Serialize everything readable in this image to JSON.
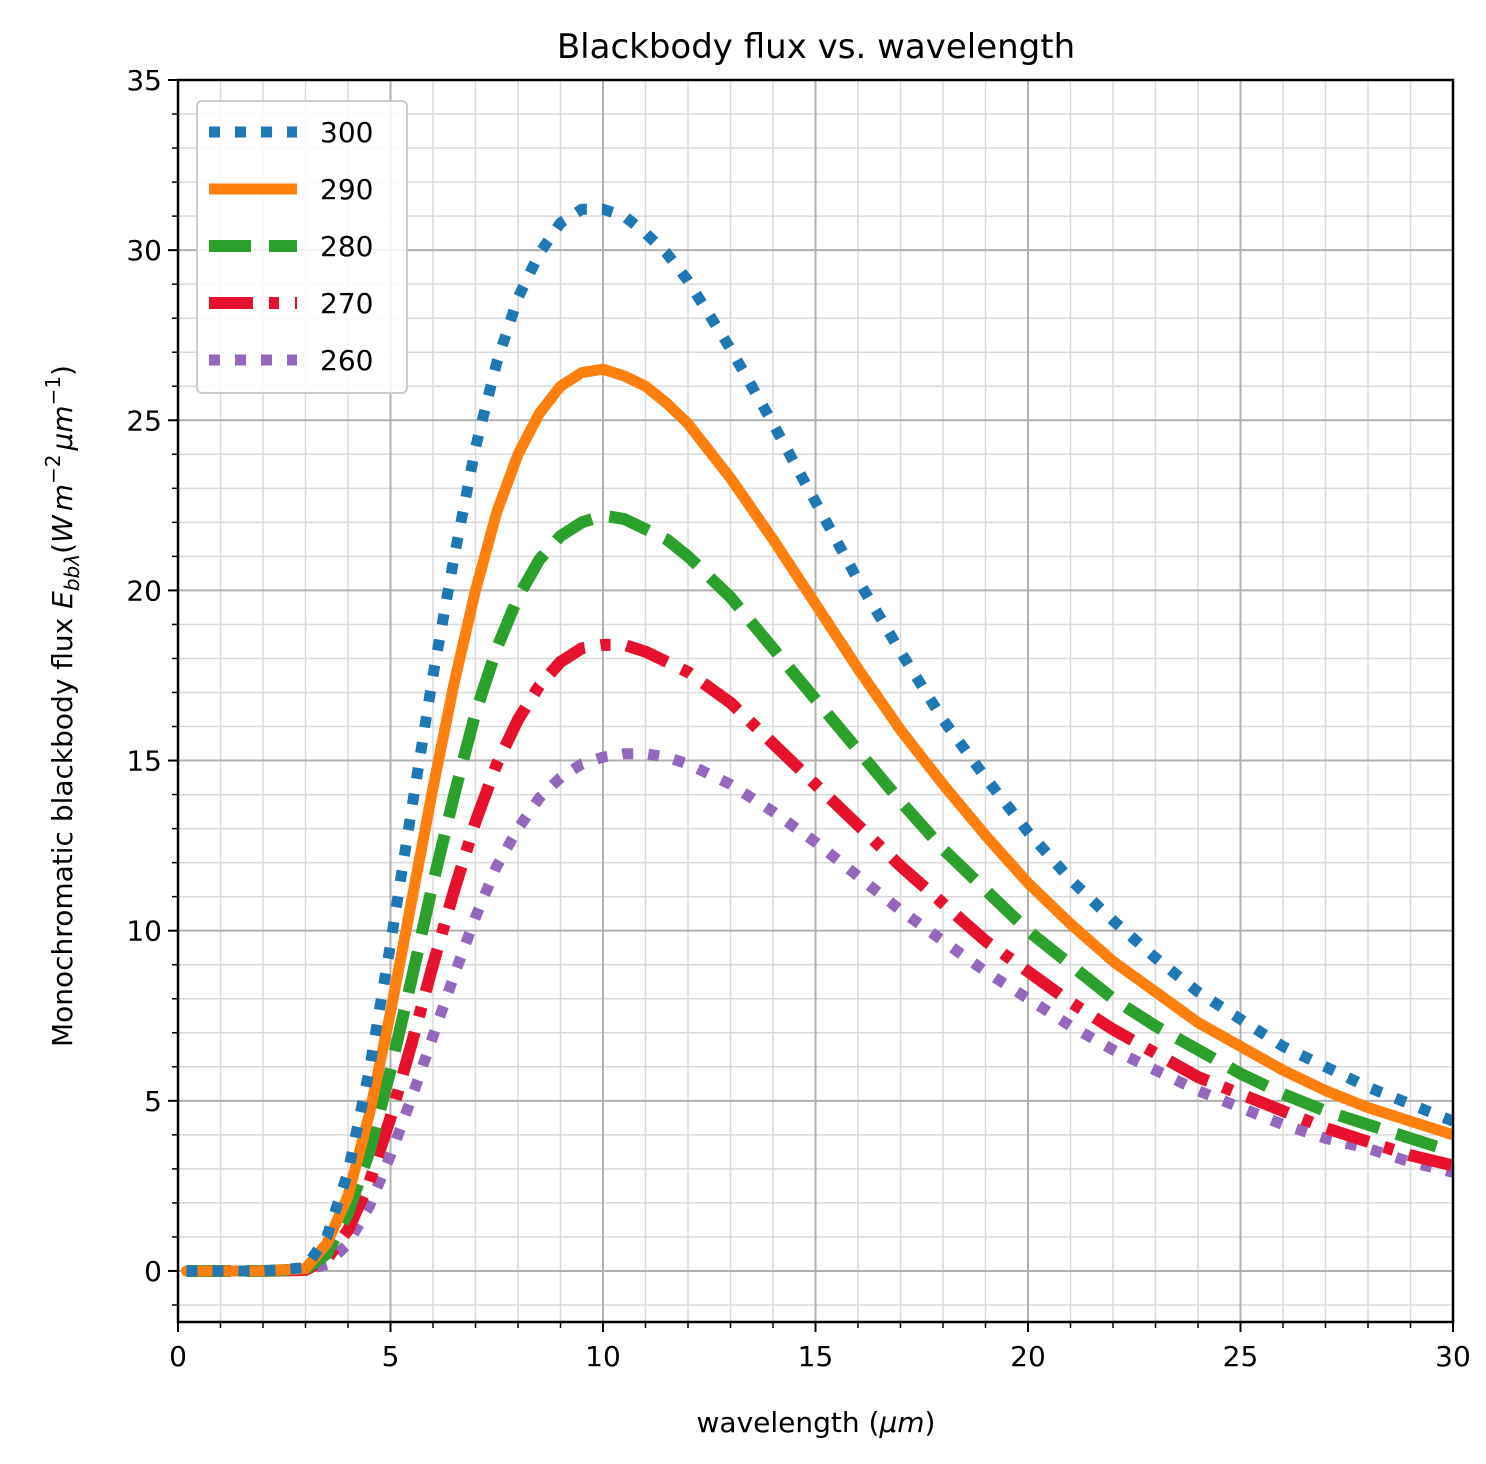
{
  "chart_data": {
    "type": "line",
    "title": "Blackbody flux vs. wavelength",
    "xlabel": "wavelength (μm)",
    "ylabel": "Monochromatic blackbody flux E_bbλ(W m⁻² μm⁻¹)",
    "xlim": [
      0,
      30
    ],
    "ylim": [
      -1.5,
      35
    ],
    "xticks": [
      0,
      5,
      10,
      15,
      20,
      25,
      30
    ],
    "yticks": [
      0,
      5,
      10,
      15,
      20,
      25,
      30,
      35
    ],
    "grid": true,
    "minor_grid": true,
    "legend_position": "top-left",
    "x": [
      0.2,
      1,
      2,
      3,
      3.5,
      4,
      4.5,
      5,
      5.5,
      6,
      6.5,
      7,
      7.5,
      8,
      8.5,
      9,
      9.5,
      10,
      10.5,
      11,
      11.5,
      12,
      13,
      14,
      15,
      16,
      17,
      18,
      19,
      20,
      21,
      22,
      23,
      24,
      25,
      26,
      27,
      28,
      29,
      30
    ],
    "series": [
      {
        "name": "300",
        "color": "#1f77b4",
        "style": "dotted",
        "values": [
          0,
          0,
          0,
          0.1,
          1.0,
          2.9,
          5.9,
          9.6,
          13.6,
          17.5,
          21.0,
          24.2,
          26.7,
          28.6,
          29.9,
          30.8,
          31.2,
          31.2,
          31.0,
          30.5,
          29.9,
          29.1,
          27.1,
          24.9,
          22.6,
          20.3,
          18.2,
          16.2,
          14.5,
          12.9,
          11.5,
          10.3,
          9.2,
          8.2,
          7.4,
          6.6,
          6.0,
          5.4,
          4.9,
          4.4
        ]
      },
      {
        "name": "290",
        "color": "#ff7f0e",
        "style": "solid",
        "values": [
          0,
          0,
          0,
          0.07,
          0.8,
          2.2,
          4.6,
          7.6,
          10.9,
          14.2,
          17.3,
          20.0,
          22.3,
          24.0,
          25.2,
          26.0,
          26.4,
          26.5,
          26.3,
          26.0,
          25.5,
          24.9,
          23.3,
          21.5,
          19.6,
          17.7,
          15.9,
          14.3,
          12.8,
          11.4,
          10.2,
          9.1,
          8.2,
          7.3,
          6.6,
          5.9,
          5.3,
          4.8,
          4.4,
          4.0
        ]
      },
      {
        "name": "280",
        "color": "#2ca02c",
        "style": "dashed",
        "values": [
          0,
          0,
          0,
          0.05,
          0.5,
          1.7,
          3.5,
          5.9,
          8.6,
          11.4,
          14.0,
          16.4,
          18.3,
          19.8,
          20.9,
          21.6,
          22.0,
          22.2,
          22.1,
          21.8,
          21.5,
          21.0,
          19.8,
          18.3,
          16.8,
          15.3,
          13.8,
          12.4,
          11.2,
          10.0,
          9.0,
          8.0,
          7.2,
          6.5,
          5.8,
          5.2,
          4.7,
          4.3,
          3.9,
          3.5
        ]
      },
      {
        "name": "270",
        "color": "#e8112d",
        "style": "dashdot",
        "values": [
          0,
          0,
          0,
          0.03,
          0.35,
          1.2,
          2.6,
          4.5,
          6.7,
          9.0,
          11.2,
          13.2,
          14.9,
          16.2,
          17.2,
          17.9,
          18.3,
          18.4,
          18.4,
          18.2,
          17.9,
          17.6,
          16.7,
          15.5,
          14.3,
          13.1,
          11.9,
          10.8,
          9.7,
          8.8,
          7.9,
          7.1,
          6.4,
          5.7,
          5.2,
          4.7,
          4.2,
          3.8,
          3.4,
          3.1
        ]
      },
      {
        "name": "260",
        "color": "#9467bd",
        "style": "dotted",
        "values": [
          0,
          0,
          0,
          0.02,
          0.2,
          0.8,
          1.9,
          3.4,
          5.1,
          6.9,
          8.7,
          10.4,
          11.9,
          13.0,
          13.9,
          14.5,
          14.9,
          15.1,
          15.2,
          15.2,
          15.1,
          14.9,
          14.3,
          13.5,
          12.6,
          11.6,
          10.6,
          9.7,
          8.8,
          8.0,
          7.2,
          6.5,
          5.9,
          5.3,
          4.8,
          4.3,
          3.9,
          3.6,
          3.2,
          2.9
        ]
      }
    ]
  },
  "labels": {
    "title": "Blackbody flux vs. wavelength",
    "xlabel_prefix": "wavelength (",
    "xlabel_unit": "μm",
    "xlabel_suffix": ")",
    "ylabel_prefix": "Monochromatic blackbody flux ",
    "ylabel_E": "E",
    "ylabel_sub": "bbλ",
    "ylabel_open": "(",
    "ylabel_W": "W",
    "ylabel_m": "m",
    "ylabel_exp1": "−2",
    "ylabel_um": "μm",
    "ylabel_exp2": "−1",
    "ylabel_close": ")"
  }
}
